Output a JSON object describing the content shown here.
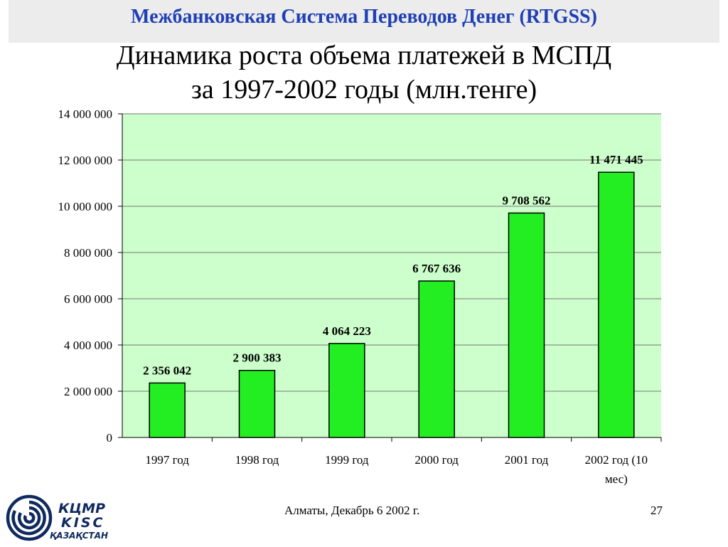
{
  "header": {
    "title": "Межбанковская Система Переводов Денег (RTGSS)"
  },
  "slide": {
    "title_line1": "Динамика роста объема платежей в МСПД",
    "title_line2": "за 1997-2002 годы (млн.тенге)"
  },
  "footer": {
    "text": "Алматы, Декабрь 6 2002 г.",
    "page_number": "27"
  },
  "logo": {
    "line1": "КЦМР",
    "line2": "KISC",
    "line3": "ҚАЗАҚСТАН"
  },
  "colors": {
    "plot_background": "#ccffcc",
    "bar_fill": "#22ee22",
    "bar_stroke": "#000000",
    "header_title": "#1f3fb5",
    "header_band": "#ececec",
    "logo": "#0f2a5e"
  },
  "chart_data": {
    "type": "bar",
    "categories": [
      "1997 год",
      "1998 год",
      "1999 год",
      "2000 год",
      "2001 год",
      "2002 год (10 мес)"
    ],
    "values": [
      2356042,
      2900383,
      4064223,
      6767636,
      9708562,
      11471445
    ],
    "data_labels": [
      "2 356 042",
      "2 900 383",
      "4 064 223",
      "6 767 636",
      "9 708 562",
      "11 471 445"
    ],
    "yticks": [
      0,
      2000000,
      4000000,
      6000000,
      8000000,
      10000000,
      12000000,
      14000000
    ],
    "ytick_labels": [
      "0",
      "2 000 000",
      "4 000 000",
      "6 000 000",
      "8 000 000",
      "10 000 000",
      "12 000 000",
      "14 000 000"
    ],
    "ylim": [
      0,
      14000000
    ],
    "grid": true,
    "legend": "none"
  }
}
